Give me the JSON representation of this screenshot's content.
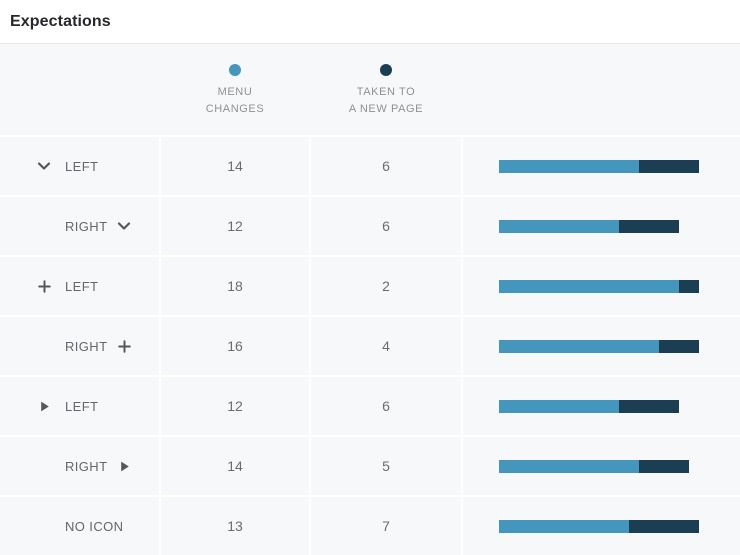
{
  "title": "Expectations",
  "colors": {
    "menu_changes": "#4596bc",
    "new_page": "#1c3e53",
    "row_bg": "#f7f8f9",
    "title_text": "#26282b",
    "label_text": "#63666a",
    "value_text": "#6a6d70",
    "legend_text": "#8e9194",
    "icon": "#55575a"
  },
  "legend": {
    "menu": {
      "lines": [
        "MENU",
        "CHANGES"
      ]
    },
    "page": {
      "lines": [
        "TAKEN TO",
        "A NEW PAGE"
      ]
    }
  },
  "rows": [
    {
      "icon": "chevron-down-icon",
      "icon_position": "left",
      "label": "LEFT",
      "menu_changes": 14,
      "new_page": 6
    },
    {
      "icon": "chevron-down-icon",
      "icon_position": "right",
      "label": "RIGHT",
      "menu_changes": 12,
      "new_page": 6
    },
    {
      "icon": "plus-icon",
      "icon_position": "left",
      "label": "LEFT",
      "menu_changes": 18,
      "new_page": 2
    },
    {
      "icon": "plus-icon",
      "icon_position": "right",
      "label": "RIGHT",
      "menu_changes": 16,
      "new_page": 4
    },
    {
      "icon": "caret-right-icon",
      "icon_position": "left",
      "label": "LEFT",
      "menu_changes": 12,
      "new_page": 6
    },
    {
      "icon": "caret-right-icon",
      "icon_position": "right",
      "label": "RIGHT",
      "menu_changes": 14,
      "new_page": 5
    },
    {
      "icon": "none",
      "icon_position": "none",
      "label": "NO ICON",
      "menu_changes": 13,
      "new_page": 7
    }
  ],
  "chart_data": {
    "type": "bar",
    "orientation": "horizontal",
    "stacked": true,
    "title": "Expectations",
    "categories": [
      "chevron-down LEFT",
      "RIGHT chevron-down",
      "plus LEFT",
      "RIGHT plus",
      "caret-right LEFT",
      "RIGHT caret-right",
      "NO ICON"
    ],
    "series": [
      {
        "name": "MENU CHANGES",
        "color": "#4596bc",
        "values": [
          14,
          12,
          18,
          16,
          12,
          14,
          13
        ]
      },
      {
        "name": "TAKEN TO A NEW PAGE",
        "color": "#1c3e53",
        "values": [
          6,
          6,
          2,
          4,
          6,
          5,
          7
        ]
      }
    ],
    "value_range": [
      0,
      20
    ],
    "legend_position": "top",
    "grid": false
  }
}
